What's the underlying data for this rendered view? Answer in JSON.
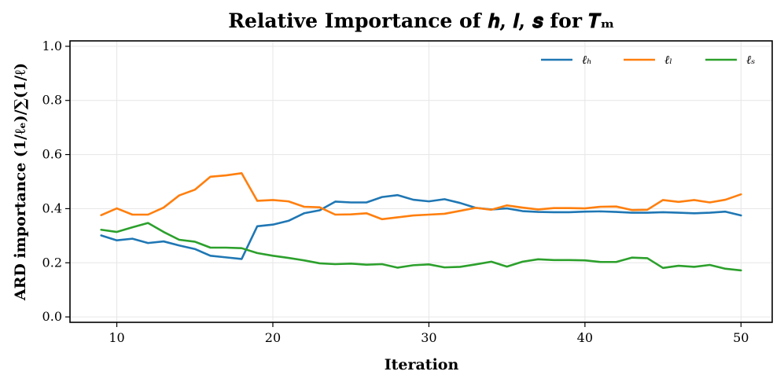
{
  "chart_data": {
    "type": "line",
    "title": "Relative Importance of h, l, s  for T_m",
    "title_display": "Relative Importance of 𝒉, 𝒍, 𝒔  for 𝑻ₘ",
    "xlabel": "Iteration",
    "ylabel": "ARD importance (1/ℓ_d)/∑(1/ℓ)",
    "ylabel_display": "ARD importance (1/ℓₑ)/∑(1/ℓ)",
    "xlim": [
      7,
      52
    ],
    "ylim": [
      -0.02,
      1.02
    ],
    "xticks": [
      10,
      20,
      30,
      40,
      50
    ],
    "yticks": [
      0.0,
      0.2,
      0.4,
      0.6,
      0.8,
      1.0
    ],
    "xtick_labels": [
      "10",
      "20",
      "30",
      "40",
      "50"
    ],
    "ytick_labels": [
      "0.0",
      "0.2",
      "0.4",
      "0.6",
      "0.8",
      "1.0"
    ],
    "grid": true,
    "legend_position": "top-right",
    "x": [
      9,
      10,
      11,
      12,
      13,
      14,
      15,
      16,
      17,
      18,
      19,
      20,
      21,
      22,
      23,
      24,
      25,
      26,
      27,
      28,
      29,
      30,
      31,
      32,
      33,
      34,
      35,
      36,
      37,
      38,
      39,
      40,
      41,
      42,
      43,
      44,
      45,
      46,
      47,
      48,
      49,
      50
    ],
    "series": [
      {
        "name": "ℓ_h",
        "legend_display": "ℓₕ",
        "color": "#1f77b4",
        "values": [
          0.301,
          0.283,
          0.289,
          0.273,
          0.279,
          0.264,
          0.251,
          0.226,
          0.22,
          0.214,
          0.335,
          0.341,
          0.355,
          0.383,
          0.394,
          0.426,
          0.423,
          0.423,
          0.443,
          0.45,
          0.433,
          0.427,
          0.435,
          0.421,
          0.403,
          0.397,
          0.401,
          0.391,
          0.388,
          0.387,
          0.387,
          0.389,
          0.39,
          0.388,
          0.385,
          0.385,
          0.387,
          0.385,
          0.383,
          0.385,
          0.389,
          0.375
        ]
      },
      {
        "name": "ℓ_l",
        "legend_display": "ℓₗ",
        "color": "#ff7f0e",
        "values": [
          0.376,
          0.401,
          0.378,
          0.378,
          0.404,
          0.449,
          0.47,
          0.518,
          0.523,
          0.531,
          0.429,
          0.432,
          0.427,
          0.407,
          0.405,
          0.378,
          0.379,
          0.383,
          0.361,
          0.368,
          0.375,
          0.378,
          0.381,
          0.392,
          0.403,
          0.396,
          0.412,
          0.404,
          0.397,
          0.402,
          0.402,
          0.401,
          0.407,
          0.408,
          0.395,
          0.396,
          0.432,
          0.425,
          0.432,
          0.423,
          0.433,
          0.453
        ]
      },
      {
        "name": "ℓ_s",
        "legend_display": "ℓₛ",
        "color": "#2ca02c",
        "values": [
          0.322,
          0.314,
          0.331,
          0.347,
          0.314,
          0.285,
          0.278,
          0.256,
          0.256,
          0.254,
          0.236,
          0.226,
          0.218,
          0.209,
          0.198,
          0.195,
          0.197,
          0.193,
          0.195,
          0.182,
          0.191,
          0.194,
          0.183,
          0.185,
          0.194,
          0.204,
          0.186,
          0.204,
          0.213,
          0.21,
          0.21,
          0.209,
          0.203,
          0.203,
          0.219,
          0.217,
          0.181,
          0.189,
          0.185,
          0.192,
          0.178,
          0.172
        ]
      }
    ]
  }
}
